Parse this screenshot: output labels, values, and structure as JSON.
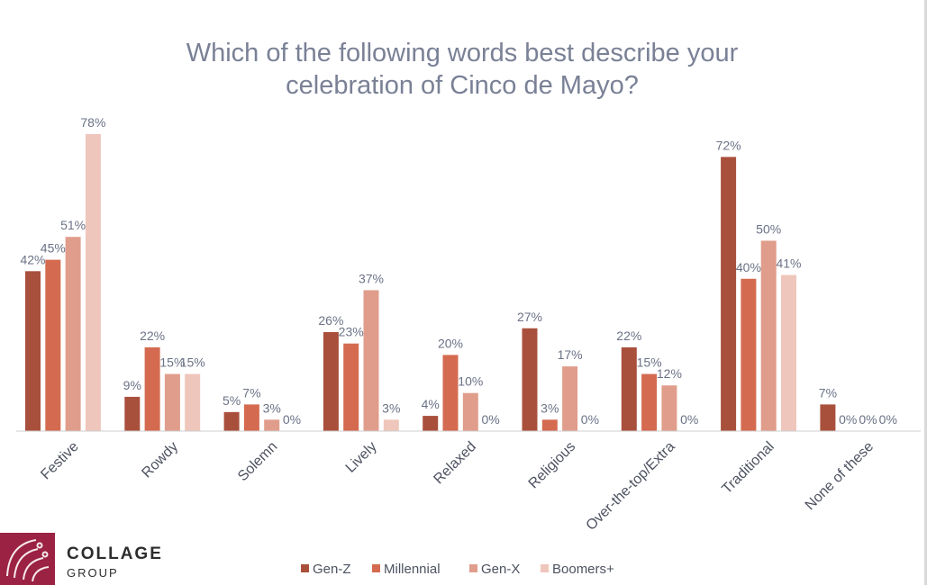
{
  "logo": {
    "name": "COLLAGE",
    "subtitle": "GROUP",
    "brand_color": "#9b2242"
  },
  "chart_data": {
    "type": "bar",
    "title_lines": [
      "Which of the following words best describe your",
      "celebration of Cinco de Mayo?"
    ],
    "categories": [
      "Festive",
      "Rowdy",
      "Solemn",
      "Lively",
      "Relaxed",
      "Religious",
      "Over-the-top/Extra",
      "Traditional",
      "None of these"
    ],
    "series": [
      {
        "name": "Gen-Z",
        "color": "#a9503c",
        "values": [
          42,
          9,
          5,
          26,
          4,
          27,
          22,
          72,
          7
        ]
      },
      {
        "name": "Millennial",
        "color": "#d46b50",
        "values": [
          45,
          22,
          7,
          23,
          20,
          3,
          15,
          40,
          0
        ]
      },
      {
        "name": "Gen-X",
        "color": "#e09d8b",
        "values": [
          51,
          15,
          3,
          37,
          10,
          17,
          12,
          50,
          0
        ]
      },
      {
        "name": "Boomers+",
        "color": "#efc6bb",
        "values": [
          78,
          15,
          0,
          3,
          0,
          0,
          0,
          41,
          0
        ]
      }
    ],
    "value_suffix": "%",
    "xlabel": "",
    "ylabel": "",
    "ylim": [
      0,
      78
    ],
    "grid": false,
    "legend_position": "bottom-center"
  }
}
